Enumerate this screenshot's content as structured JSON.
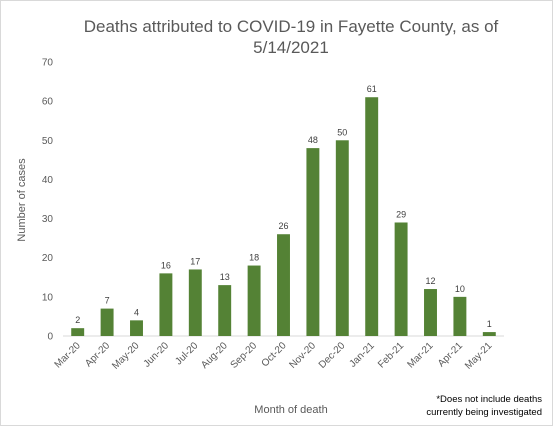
{
  "chart_data": {
    "type": "bar",
    "title_lines": [
      "Deaths attributed to COVID-19 in Fayette County, as of",
      "5/14/2021"
    ],
    "xlabel": "Month of death",
    "ylabel": "Number of cases",
    "ylim": [
      0,
      70
    ],
    "yticks": [
      0,
      10,
      20,
      30,
      40,
      50,
      60,
      70
    ],
    "grid": false,
    "legend": "none",
    "bar_color": "#548235",
    "categories": [
      "Mar-20",
      "Apr-20",
      "May-20",
      "Jun-20",
      "Jul-20",
      "Aug-20",
      "Sep-20",
      "Oct-20",
      "Nov-20",
      "Dec-20",
      "Jan-21",
      "Feb-21",
      "Mar-21",
      "Apr-21",
      "May-21"
    ],
    "values": [
      2,
      7,
      4,
      16,
      17,
      13,
      18,
      26,
      48,
      50,
      61,
      29,
      12,
      10,
      1
    ],
    "footnote_lines": [
      "*Does not include deaths",
      "currently being investigated"
    ]
  }
}
